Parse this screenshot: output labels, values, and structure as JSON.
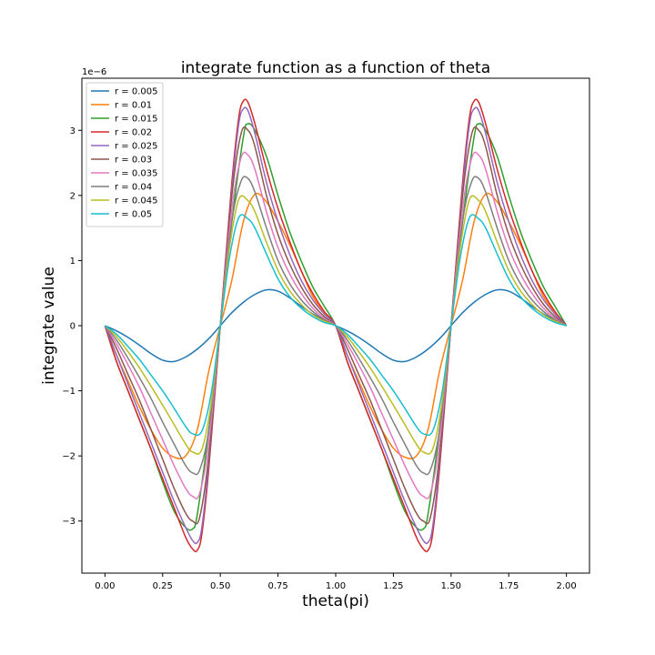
{
  "chart_data": {
    "type": "line",
    "title": "integrate function as a function of theta",
    "xlabel": "theta(pi)",
    "ylabel": "integrate value",
    "y_offset_label": "1e−6",
    "xlim": [
      -0.1,
      2.1
    ],
    "ylim": [
      -3.8,
      3.8
    ],
    "xticks": [
      0.0,
      0.25,
      0.5,
      0.75,
      1.0,
      1.25,
      1.5,
      1.75,
      2.0
    ],
    "xtick_labels": [
      "0.00",
      "0.25",
      "0.50",
      "0.75",
      "1.00",
      "1.25",
      "1.50",
      "1.75",
      "2.00"
    ],
    "yticks": [
      -3,
      -2,
      -1,
      0,
      1,
      2,
      3
    ],
    "ytick_labels": [
      "−3",
      "−2",
      "−1",
      "0",
      "1",
      "2",
      "3"
    ],
    "grid": false,
    "legend_position": "top-left",
    "series": [
      {
        "name": "r = 0.005",
        "color": "#1f77b4",
        "x": [
          0,
          0.05,
          0.1,
          0.15,
          0.2,
          0.25,
          0.3,
          0.35,
          0.4,
          0.45,
          0.5,
          0.55,
          0.6,
          0.65,
          0.7,
          0.75,
          0.8,
          0.85,
          0.9,
          0.95,
          1.0,
          1.05,
          1.1,
          1.15,
          1.2,
          1.25,
          1.3,
          1.35,
          1.4,
          1.45,
          1.5,
          1.55,
          1.6,
          1.65,
          1.7,
          1.75,
          1.8,
          1.85,
          1.9,
          1.95,
          2.0
        ],
        "y": [
          0,
          -0.08,
          -0.18,
          -0.3,
          -0.43,
          -0.53,
          -0.55,
          -0.48,
          -0.36,
          -0.2,
          0,
          0.2,
          0.36,
          0.48,
          0.55,
          0.53,
          0.43,
          0.3,
          0.18,
          0.08,
          0,
          -0.08,
          -0.18,
          -0.3,
          -0.43,
          -0.53,
          -0.55,
          -0.48,
          -0.36,
          -0.2,
          0,
          0.2,
          0.36,
          0.48,
          0.55,
          0.53,
          0.43,
          0.3,
          0.18,
          0.08,
          0
        ]
      },
      {
        "name": "r = 0.01",
        "color": "#ff7f0e",
        "x": [
          0,
          0.05,
          0.1,
          0.15,
          0.2,
          0.25,
          0.3,
          0.35,
          0.4,
          0.45,
          0.5,
          0.55,
          0.6,
          0.65,
          0.7,
          0.75,
          0.8,
          0.85,
          0.9,
          0.95,
          1.0,
          1.05,
          1.1,
          1.15,
          1.2,
          1.25,
          1.3,
          1.35,
          1.4,
          1.45,
          1.5,
          1.55,
          1.6,
          1.65,
          1.7,
          1.75,
          1.8,
          1.85,
          1.9,
          1.95,
          2.0
        ],
        "y": [
          0,
          -0.45,
          -0.85,
          -1.25,
          -1.6,
          -1.88,
          -2.02,
          -2.0,
          -1.6,
          -0.7,
          0,
          0.7,
          1.6,
          2.02,
          1.9,
          1.6,
          1.25,
          0.85,
          0.45,
          0.2,
          0,
          -0.45,
          -0.85,
          -1.25,
          -1.6,
          -1.88,
          -2.02,
          -2.0,
          -1.6,
          -0.7,
          0,
          0.7,
          1.6,
          2.02,
          1.9,
          1.6,
          1.25,
          0.85,
          0.45,
          0.2,
          0
        ]
      },
      {
        "name": "r = 0.015",
        "color": "#2ca02c",
        "x": [
          0,
          0.05,
          0.1,
          0.15,
          0.2,
          0.25,
          0.3,
          0.35,
          0.38,
          0.4,
          0.45,
          0.5,
          0.55,
          0.6,
          0.62,
          0.65,
          0.7,
          0.75,
          0.8,
          0.85,
          0.9,
          0.95,
          1.0,
          1.05,
          1.1,
          1.15,
          1.2,
          1.25,
          1.3,
          1.35,
          1.38,
          1.4,
          1.45,
          1.5,
          1.55,
          1.6,
          1.62,
          1.65,
          1.7,
          1.75,
          1.8,
          1.85,
          1.9,
          1.95,
          2.0
        ],
        "y": [
          0,
          -0.55,
          -1.0,
          -1.45,
          -1.9,
          -2.4,
          -2.85,
          -3.1,
          -3.12,
          -2.9,
          -1.6,
          0,
          1.6,
          2.9,
          3.1,
          3.0,
          2.6,
          2.0,
          1.45,
          1.0,
          0.6,
          0.3,
          0,
          -0.55,
          -1.0,
          -1.45,
          -1.9,
          -2.4,
          -2.85,
          -3.1,
          -3.12,
          -2.9,
          -1.6,
          0,
          1.6,
          2.9,
          3.1,
          3.0,
          2.6,
          2.0,
          1.45,
          1.0,
          0.6,
          0.3,
          0
        ]
      },
      {
        "name": "r = 0.02",
        "color": "#d62728",
        "x": [
          0,
          0.05,
          0.1,
          0.15,
          0.2,
          0.25,
          0.3,
          0.35,
          0.38,
          0.4,
          0.42,
          0.45,
          0.5,
          0.55,
          0.58,
          0.6,
          0.62,
          0.65,
          0.7,
          0.75,
          0.8,
          0.85,
          0.9,
          0.95,
          1.0,
          1.05,
          1.1,
          1.15,
          1.2,
          1.25,
          1.3,
          1.35,
          1.38,
          1.4,
          1.42,
          1.45,
          1.5,
          1.55,
          1.58,
          1.6,
          1.62,
          1.65,
          1.7,
          1.75,
          1.8,
          1.85,
          1.9,
          1.95,
          2.0
        ],
        "y": [
          0,
          -0.55,
          -1.0,
          -1.45,
          -1.9,
          -2.35,
          -2.8,
          -3.25,
          -3.43,
          -3.45,
          -3.2,
          -2.2,
          0,
          2.2,
          3.2,
          3.45,
          3.43,
          3.1,
          2.4,
          1.8,
          1.3,
          0.85,
          0.5,
          0.22,
          0,
          -0.55,
          -1.0,
          -1.45,
          -1.9,
          -2.35,
          -2.8,
          -3.25,
          -3.43,
          -3.45,
          -3.2,
          -2.2,
          0,
          2.2,
          3.2,
          3.45,
          3.43,
          3.1,
          2.4,
          1.8,
          1.3,
          0.85,
          0.5,
          0.22,
          0
        ]
      },
      {
        "name": "r = 0.025",
        "color": "#9467bd",
        "x": [
          0,
          0.05,
          0.1,
          0.15,
          0.2,
          0.25,
          0.3,
          0.35,
          0.38,
          0.4,
          0.42,
          0.45,
          0.5,
          0.55,
          0.58,
          0.6,
          0.62,
          0.65,
          0.7,
          0.75,
          0.8,
          0.85,
          0.9,
          0.95,
          1.0,
          1.05,
          1.1,
          1.15,
          1.2,
          1.25,
          1.3,
          1.35,
          1.38,
          1.4,
          1.42,
          1.45,
          1.5,
          1.55,
          1.58,
          1.6,
          1.62,
          1.65,
          1.7,
          1.75,
          1.8,
          1.85,
          1.9,
          1.95,
          2.0
        ],
        "y": [
          0,
          -0.45,
          -0.9,
          -1.35,
          -1.8,
          -2.25,
          -2.7,
          -3.1,
          -3.3,
          -3.33,
          -3.1,
          -2.1,
          0,
          2.1,
          3.1,
          3.33,
          3.3,
          2.95,
          2.2,
          1.6,
          1.1,
          0.7,
          0.4,
          0.18,
          0,
          -0.45,
          -0.9,
          -1.35,
          -1.8,
          -2.25,
          -2.7,
          -3.1,
          -3.3,
          -3.33,
          -3.1,
          -2.1,
          0,
          2.1,
          3.1,
          3.33,
          3.3,
          2.95,
          2.2,
          1.6,
          1.1,
          0.7,
          0.4,
          0.18,
          0
        ]
      },
      {
        "name": "r = 0.03",
        "color": "#8c564b",
        "x": [
          0,
          0.05,
          0.1,
          0.15,
          0.2,
          0.25,
          0.3,
          0.35,
          0.38,
          0.41,
          0.45,
          0.5,
          0.55,
          0.59,
          0.62,
          0.65,
          0.7,
          0.75,
          0.8,
          0.85,
          0.9,
          0.95,
          1.0,
          1.05,
          1.1,
          1.15,
          1.2,
          1.25,
          1.3,
          1.35,
          1.38,
          1.41,
          1.45,
          1.5,
          1.55,
          1.59,
          1.62,
          1.65,
          1.7,
          1.75,
          1.8,
          1.85,
          1.9,
          1.95,
          2.0
        ],
        "y": [
          0,
          -0.35,
          -0.75,
          -1.15,
          -1.6,
          -2.05,
          -2.5,
          -2.88,
          -3.0,
          -2.95,
          -2.0,
          0,
          2.0,
          2.95,
          3.0,
          2.75,
          2.0,
          1.4,
          0.95,
          0.6,
          0.33,
          0.14,
          0,
          -0.35,
          -0.75,
          -1.15,
          -1.6,
          -2.05,
          -2.5,
          -2.88,
          -3.0,
          -2.95,
          -2.0,
          0,
          2.0,
          2.95,
          3.0,
          2.75,
          2.0,
          1.4,
          0.95,
          0.6,
          0.33,
          0.14,
          0
        ]
      },
      {
        "name": "r = 0.035",
        "color": "#e377c2",
        "x": [
          0,
          0.05,
          0.1,
          0.15,
          0.2,
          0.25,
          0.3,
          0.35,
          0.38,
          0.41,
          0.45,
          0.5,
          0.55,
          0.59,
          0.62,
          0.65,
          0.7,
          0.75,
          0.8,
          0.85,
          0.9,
          0.95,
          1.0,
          1.05,
          1.1,
          1.15,
          1.2,
          1.25,
          1.3,
          1.35,
          1.38,
          1.41,
          1.45,
          1.5,
          1.55,
          1.59,
          1.62,
          1.65,
          1.7,
          1.75,
          1.8,
          1.85,
          1.9,
          1.95,
          2.0
        ],
        "y": [
          0,
          -0.28,
          -0.6,
          -0.95,
          -1.35,
          -1.75,
          -2.15,
          -2.5,
          -2.62,
          -2.58,
          -1.8,
          0,
          1.8,
          2.58,
          2.62,
          2.4,
          1.75,
          1.2,
          0.8,
          0.5,
          0.27,
          0.11,
          0,
          -0.28,
          -0.6,
          -0.95,
          -1.35,
          -1.75,
          -2.15,
          -2.5,
          -2.62,
          -2.58,
          -1.8,
          0,
          1.8,
          2.58,
          2.62,
          2.4,
          1.75,
          1.2,
          0.8,
          0.5,
          0.27,
          0.11,
          0
        ]
      },
      {
        "name": "r = 0.04",
        "color": "#7f7f7f",
        "x": [
          0,
          0.05,
          0.1,
          0.15,
          0.2,
          0.25,
          0.3,
          0.35,
          0.38,
          0.41,
          0.45,
          0.5,
          0.55,
          0.59,
          0.62,
          0.65,
          0.7,
          0.75,
          0.8,
          0.85,
          0.9,
          0.95,
          1.0,
          1.05,
          1.1,
          1.15,
          1.2,
          1.25,
          1.3,
          1.35,
          1.38,
          1.41,
          1.45,
          1.5,
          1.55,
          1.59,
          1.62,
          1.65,
          1.7,
          1.75,
          1.8,
          1.85,
          1.9,
          1.95,
          2.0
        ],
        "y": [
          0,
          -0.22,
          -0.5,
          -0.8,
          -1.12,
          -1.48,
          -1.82,
          -2.15,
          -2.26,
          -2.22,
          -1.6,
          0,
          1.6,
          2.22,
          2.26,
          2.05,
          1.5,
          1.0,
          0.65,
          0.4,
          0.22,
          0.09,
          0,
          -0.22,
          -0.5,
          -0.8,
          -1.12,
          -1.48,
          -1.82,
          -2.15,
          -2.26,
          -2.22,
          -1.6,
          0,
          1.6,
          2.22,
          2.26,
          2.05,
          1.5,
          1.0,
          0.65,
          0.4,
          0.22,
          0.09,
          0
        ]
      },
      {
        "name": "r = 0.045",
        "color": "#bcbd22",
        "x": [
          0,
          0.05,
          0.1,
          0.15,
          0.2,
          0.25,
          0.3,
          0.35,
          0.38,
          0.42,
          0.46,
          0.5,
          0.54,
          0.58,
          0.62,
          0.65,
          0.7,
          0.75,
          0.8,
          0.85,
          0.9,
          0.95,
          1.0,
          1.05,
          1.1,
          1.15,
          1.2,
          1.25,
          1.3,
          1.35,
          1.38,
          1.42,
          1.46,
          1.5,
          1.54,
          1.58,
          1.62,
          1.65,
          1.7,
          1.75,
          1.8,
          1.85,
          1.9,
          1.95,
          2.0
        ],
        "y": [
          0,
          -0.17,
          -0.4,
          -0.65,
          -0.93,
          -1.22,
          -1.52,
          -1.82,
          -1.94,
          -1.9,
          -1.2,
          0,
          1.2,
          1.94,
          1.92,
          1.75,
          1.28,
          0.85,
          0.54,
          0.33,
          0.17,
          0.07,
          0,
          -0.17,
          -0.4,
          -0.65,
          -0.93,
          -1.22,
          -1.52,
          -1.82,
          -1.94,
          -1.9,
          -1.2,
          0,
          1.2,
          1.94,
          1.92,
          1.75,
          1.28,
          0.85,
          0.54,
          0.33,
          0.17,
          0.07,
          0
        ]
      },
      {
        "name": "r = 0.05",
        "color": "#17becf",
        "x": [
          0,
          0.05,
          0.1,
          0.15,
          0.2,
          0.25,
          0.3,
          0.35,
          0.38,
          0.42,
          0.46,
          0.5,
          0.54,
          0.58,
          0.62,
          0.65,
          0.7,
          0.75,
          0.8,
          0.85,
          0.9,
          0.95,
          1.0,
          1.05,
          1.1,
          1.15,
          1.2,
          1.25,
          1.3,
          1.35,
          1.38,
          1.42,
          1.46,
          1.5,
          1.54,
          1.58,
          1.62,
          1.65,
          1.7,
          1.75,
          1.8,
          1.85,
          1.9,
          1.95,
          2.0
        ],
        "y": [
          0,
          -0.13,
          -0.32,
          -0.52,
          -0.76,
          -1.0,
          -1.27,
          -1.55,
          -1.66,
          -1.62,
          -1.05,
          0,
          1.05,
          1.66,
          1.64,
          1.5,
          1.1,
          0.72,
          0.45,
          0.27,
          0.14,
          0.05,
          0,
          -0.13,
          -0.32,
          -0.52,
          -0.76,
          -1.0,
          -1.27,
          -1.55,
          -1.66,
          -1.62,
          -1.05,
          0,
          1.05,
          1.66,
          1.64,
          1.5,
          1.1,
          0.72,
          0.45,
          0.27,
          0.14,
          0.05,
          0
        ]
      }
    ]
  }
}
